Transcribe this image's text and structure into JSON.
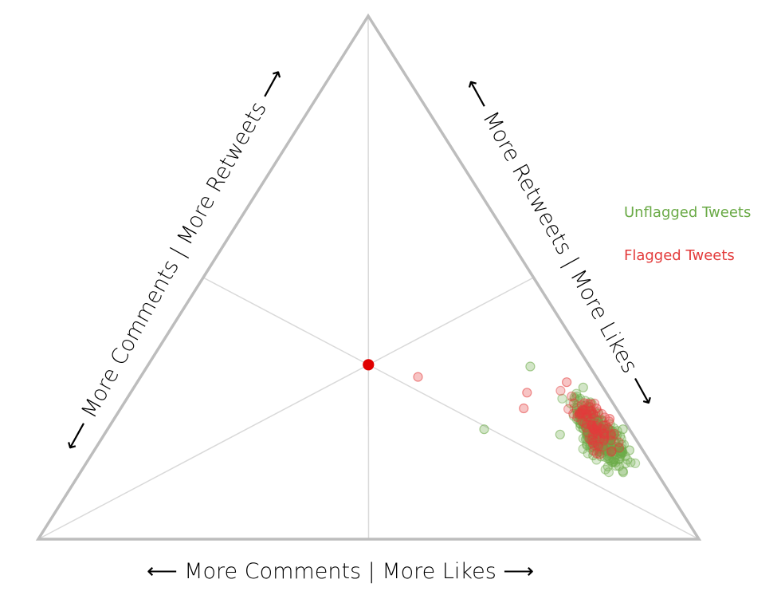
{
  "chart_data": {
    "type": "scatter",
    "subtype": "ternary",
    "components": [
      "Comments",
      "Retweets",
      "Likes"
    ],
    "axis_labels": {
      "bottom": "⟵ More Comments | More Likes ⟶",
      "left": "⟵ More Comments | More Retweets ⟶",
      "right": "⟵ More Retweets | More Likes ⟶"
    },
    "center_point": {
      "comments": 0.333,
      "retweets": 0.333,
      "likes": 0.333,
      "color": "#e00000"
    },
    "legend": {
      "placement": "right",
      "entries": [
        {
          "label": "Unflagged Tweets",
          "color": "#6aaa46"
        },
        {
          "label": "Flagged Tweets",
          "color": "#e33b3b"
        }
      ]
    },
    "series": [
      {
        "name": "Unflagged Tweets",
        "color": "#6aaa46",
        "cluster_center": {
          "comments": 0.05,
          "retweets": 0.2,
          "likes": 0.75
        },
        "points": [
          {
            "comments": 0.22,
            "retweets": 0.21,
            "likes": 0.57
          },
          {
            "comments": 0.09,
            "retweets": 0.33,
            "likes": 0.58
          },
          {
            "comments": 0.08,
            "retweets": 0.16,
            "likes": 0.76
          },
          {
            "comments": 0.04,
            "retweets": 0.21,
            "likes": 0.75
          },
          {
            "comments": 0.02,
            "retweets": 0.17,
            "likes": 0.81
          },
          {
            "comments": 0.01,
            "retweets": 0.21,
            "likes": 0.78
          },
          {
            "comments": 0.06,
            "retweets": 0.25,
            "likes": 0.69
          },
          {
            "comments": 0.11,
            "retweets": 0.2,
            "likes": 0.69
          },
          {
            "comments": 0.03,
            "retweets": 0.29,
            "likes": 0.68
          },
          {
            "comments": 0.05,
            "retweets": 0.13,
            "likes": 0.82
          }
        ]
      },
      {
        "name": "Flagged Tweets",
        "color": "#e33b3b",
        "cluster_center": {
          "comments": 0.05,
          "retweets": 0.22,
          "likes": 0.73
        },
        "points": [
          {
            "comments": 0.27,
            "retweets": 0.31,
            "likes": 0.42
          },
          {
            "comments": 0.12,
            "retweets": 0.28,
            "likes": 0.6
          },
          {
            "comments": 0.14,
            "retweets": 0.25,
            "likes": 0.61
          },
          {
            "comments": 0.05,
            "retweets": 0.3,
            "likes": 0.65
          },
          {
            "comments": 0.03,
            "retweets": 0.25,
            "likes": 0.72
          },
          {
            "comments": 0.06,
            "retweets": 0.22,
            "likes": 0.72
          },
          {
            "comments": 0.02,
            "retweets": 0.23,
            "likes": 0.75
          }
        ]
      }
    ]
  }
}
